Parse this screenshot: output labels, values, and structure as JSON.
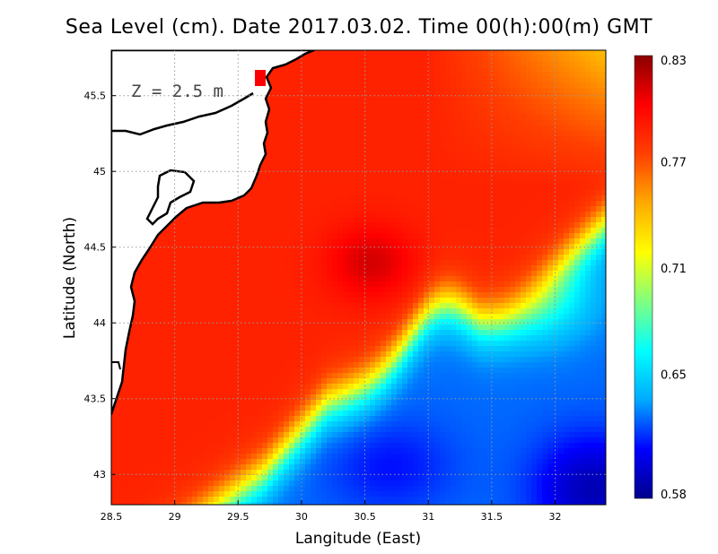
{
  "title": "Sea Level (cm). Date 2017.03.02. Time 00(h):00(m) GMT",
  "depth_label": "Z = 2.5 m",
  "chart_data": {
    "type": "heatmap",
    "title": "Sea Level (cm). Date 2017.03.02. Time 00(h):00(m) GMT",
    "xlabel": "Langitude (East)",
    "ylabel": "Latitude (North)",
    "xlim": [
      28.5,
      32.4
    ],
    "ylim": [
      42.8,
      45.8
    ],
    "x_ticks": [
      "28.5",
      "29",
      "29.5",
      "30",
      "30.5",
      "31",
      "31.5",
      "32"
    ],
    "y_ticks": [
      "43",
      "43.5",
      "44",
      "44.5",
      "45",
      "45.5"
    ],
    "grid": true,
    "colorbar": {
      "range": [
        0.58,
        0.83
      ],
      "ticks": [
        "0.83",
        "0.77",
        "0.71",
        "0.65",
        "0.58"
      ],
      "colors": [
        "#00008b",
        "#0000ff",
        "#00aaff",
        "#00ffff",
        "#80ff80",
        "#ffff00",
        "#ffaa00",
        "#ff4000",
        "#ff0000",
        "#8b0000"
      ]
    },
    "features": [
      {
        "description": "max sea level near",
        "lon": 30.5,
        "lat": 44.4,
        "value": 0.83
      },
      {
        "description": "min sea level near",
        "lon": 32.3,
        "lat": 42.9,
        "value": 0.58
      },
      {
        "description": "secondary low near",
        "lon": 30.7,
        "lat": 42.9,
        "value": 0.61
      }
    ]
  }
}
